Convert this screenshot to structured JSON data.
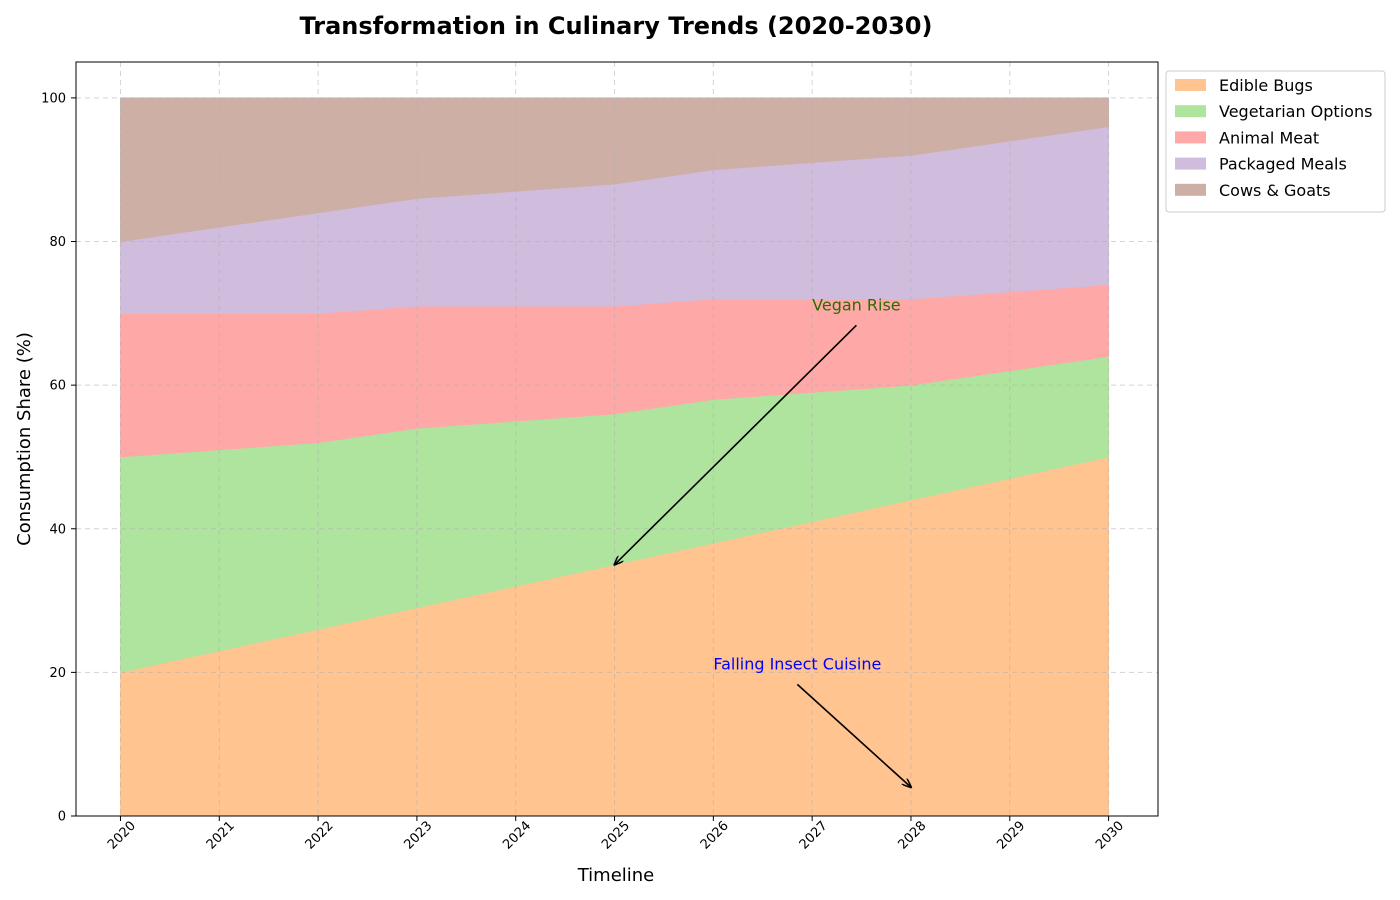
{
  "chart_data": {
    "type": "area",
    "stacked": true,
    "title": "Transformation in Culinary Trends (2020-2030)",
    "xlabel": "Timeline",
    "ylabel": "Consumption Share (%)",
    "x": [
      "2020",
      "2021",
      "2022",
      "2023",
      "2024",
      "2025",
      "2026",
      "2027",
      "2028",
      "2029",
      "2030"
    ],
    "xlim": [
      2019.55,
      2030.5
    ],
    "ylim": [
      0,
      105
    ],
    "yticks": [
      0,
      20,
      40,
      60,
      80,
      100
    ],
    "grid": true,
    "legend_position": "outside top-right",
    "series": [
      {
        "name": "Edible Bugs",
        "color": "#ffc490",
        "values": [
          20,
          23,
          26,
          29,
          32,
          35,
          38,
          41,
          44,
          47,
          50
        ]
      },
      {
        "name": "Vegetarian Options",
        "color": "#aee49d",
        "values": [
          30,
          28,
          26,
          25,
          23,
          21,
          20,
          18,
          16,
          15,
          14
        ]
      },
      {
        "name": "Animal Meat",
        "color": "#ffa8a8",
        "values": [
          20,
          19,
          18,
          17,
          16,
          15,
          14,
          13,
          12,
          11,
          10
        ]
      },
      {
        "name": "Packaged Meals",
        "color": "#d0bcdd",
        "values": [
          10,
          12,
          14,
          15,
          16,
          17,
          18,
          19,
          20,
          21,
          22
        ]
      },
      {
        "name": "Cows & Goats",
        "color": "#cdafa6",
        "values": [
          20,
          18,
          16,
          14,
          13,
          12,
          10,
          9,
          8,
          6,
          4
        ]
      }
    ],
    "annotations": [
      {
        "text": "Vegan Rise",
        "color": "#2e6b00",
        "text_at": [
          2027,
          70
        ],
        "arrow_to": [
          2025,
          35
        ]
      },
      {
        "text": "Falling Insect Cuisine",
        "color": "#0000ff",
        "text_at": [
          2026,
          20
        ],
        "arrow_to": [
          2028,
          4
        ]
      }
    ]
  }
}
